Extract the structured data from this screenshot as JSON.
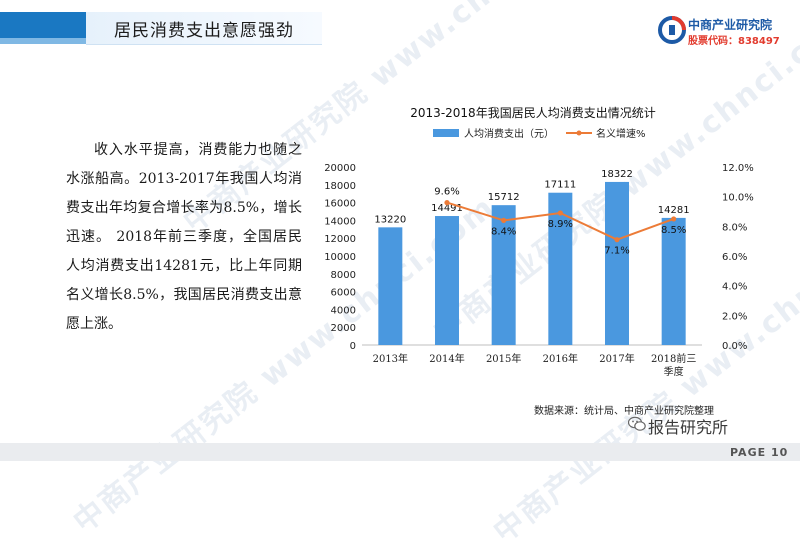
{
  "header": {
    "title": "居民消费支出意愿强劲"
  },
  "logo": {
    "name": "中商产业研究院",
    "code": "股票代码：838497"
  },
  "watermark": "中商产业研究院 www.chnci.com",
  "body_text": "收入水平提高，消费能力也随之水涨船高。2013-2017年我国人均消费支出年均复合增长率为8.5%，增长迅速。 2018年前三季度，全国居民人均消费支出14281元，比上年同期名义增长8.5%，我国居民消费支出意愿上涨。",
  "source": "数据来源：统计局、中商产业研究院整理",
  "wechat": "报告研究所",
  "page": "PAGE 10",
  "colors": {
    "bar": "#4a98df",
    "line": "#ec7b37",
    "accent": "#1a78c2"
  },
  "chart_data": {
    "type": "bar",
    "title": "2013-2018年我国居民人均消费支出情况统计",
    "categories": [
      "2013年",
      "2014年",
      "2015年",
      "2016年",
      "2017年",
      "2018前三季度"
    ],
    "category_labels": [
      [
        "2013年"
      ],
      [
        "2014年"
      ],
      [
        "2015年"
      ],
      [
        "2016年"
      ],
      [
        "2017年"
      ],
      [
        "2018前三",
        "季度"
      ]
    ],
    "series": [
      {
        "name": "人均消费支出（元）",
        "type": "bar",
        "axis": "left",
        "values": [
          13220,
          14491,
          15712,
          17111,
          18322,
          14281
        ],
        "labels": [
          "13220",
          "14491",
          "15712",
          "17111",
          "18322",
          "14281"
        ]
      },
      {
        "name": "名义增速%",
        "type": "line",
        "axis": "right",
        "values": [
          null,
          9.6,
          8.4,
          8.9,
          7.1,
          8.5
        ],
        "labels": [
          "",
          "9.6%",
          "8.4%",
          "8.9%",
          "7.1%",
          "8.5%"
        ]
      }
    ],
    "y_left": {
      "range": [
        0,
        20000
      ],
      "ticks": [
        "0",
        "2000",
        "4000",
        "6000",
        "8000",
        "10000",
        "12000",
        "14000",
        "16000",
        "18000",
        "20000"
      ]
    },
    "y_right": {
      "range": [
        0,
        12
      ],
      "ticks": [
        "0.0%",
        "2.0%",
        "4.0%",
        "6.0%",
        "8.0%",
        "10.0%",
        "12.0%"
      ]
    },
    "legend_position": "top",
    "grid": false
  }
}
